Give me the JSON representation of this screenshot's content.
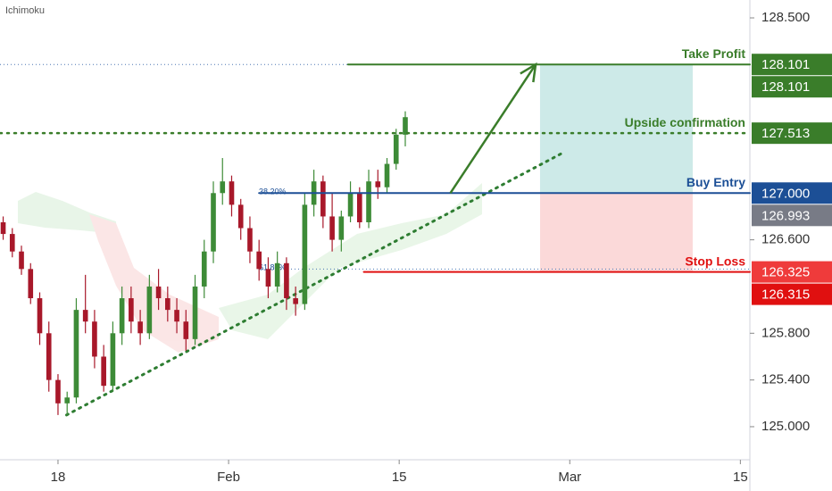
{
  "chart_data": {
    "type": "candlestick",
    "indicator_label": "Ichimoku",
    "up_color": "#3d8b37",
    "down_color": "#a8182a",
    "xlim": [
      -4.76,
      56.78
    ],
    "ylim": [
      124.717,
      128.653
    ],
    "xticks": [
      {
        "value": 0,
        "label": "18"
      },
      {
        "value": 14,
        "label": "Feb"
      },
      {
        "value": 28,
        "label": "15"
      },
      {
        "value": 42,
        "label": "Mar"
      },
      {
        "value": 56,
        "label": "15"
      }
    ],
    "yticks": [
      {
        "value": 125.0,
        "label": "125.000"
      },
      {
        "value": 125.4,
        "label": "125.400"
      },
      {
        "value": 125.8,
        "label": "125.800"
      },
      {
        "value": 126.6,
        "label": "126.600"
      },
      {
        "value": 128.5,
        "label": "128.500"
      }
    ],
    "x": [
      -4.5,
      -3.75,
      -3.0,
      -2.25,
      -1.5,
      -0.75,
      0,
      0.75,
      1.5,
      2.25,
      3.0,
      3.75,
      4.5,
      5.25,
      6.0,
      6.75,
      7.5,
      8.25,
      9.0,
      9.75,
      10.5,
      11.25,
      12.0,
      12.75,
      13.5,
      14.25,
      15.0,
      15.75,
      16.5,
      17.25,
      18.0,
      18.75,
      19.5,
      20.25,
      21.0,
      21.75,
      22.5,
      23.25,
      24.0,
      24.75,
      25.5,
      26.25,
      27.0,
      27.75,
      28.5
    ],
    "open": [
      126.75,
      126.65,
      126.5,
      126.35,
      126.1,
      125.8,
      125.4,
      125.2,
      125.25,
      126.0,
      125.9,
      125.6,
      125.35,
      125.8,
      126.1,
      125.9,
      125.8,
      126.2,
      126.1,
      126.0,
      125.9,
      125.75,
      126.2,
      126.5,
      127.0,
      127.1,
      126.9,
      126.7,
      126.5,
      126.35,
      126.2,
      126.4,
      126.1,
      126.05,
      126.9,
      127.1,
      126.8,
      126.6,
      126.8,
      127.0,
      126.75,
      127.1,
      127.05,
      127.25,
      127.5
    ],
    "high": [
      126.8,
      126.7,
      126.55,
      126.4,
      126.15,
      125.9,
      125.45,
      125.3,
      126.1,
      126.3,
      126.0,
      125.7,
      125.9,
      126.2,
      126.2,
      126.0,
      126.3,
      126.35,
      126.2,
      126.1,
      126.0,
      126.3,
      126.6,
      127.1,
      127.3,
      127.15,
      126.95,
      126.8,
      126.6,
      126.45,
      126.5,
      126.45,
      126.2,
      127.0,
      127.2,
      127.15,
      127.0,
      126.85,
      127.1,
      127.05,
      127.2,
      127.2,
      127.3,
      127.55,
      127.7
    ],
    "low": [
      126.6,
      126.45,
      126.3,
      126.05,
      125.7,
      125.3,
      125.1,
      125.1,
      125.2,
      125.8,
      125.5,
      125.3,
      125.3,
      125.7,
      125.8,
      125.7,
      125.75,
      126.0,
      125.9,
      125.8,
      125.65,
      125.7,
      126.1,
      126.4,
      126.9,
      126.8,
      126.6,
      126.4,
      126.25,
      126.1,
      126.15,
      126.0,
      125.95,
      126.0,
      126.8,
      126.7,
      126.5,
      126.5,
      126.75,
      126.7,
      126.7,
      126.95,
      127.0,
      127.2,
      127.4
    ],
    "close": [
      126.65,
      126.5,
      126.35,
      126.1,
      125.8,
      125.4,
      125.2,
      125.25,
      126.0,
      125.9,
      125.6,
      125.35,
      125.8,
      126.1,
      125.9,
      125.8,
      126.2,
      126.1,
      126.0,
      125.9,
      125.75,
      126.2,
      126.5,
      127.0,
      127.1,
      126.9,
      126.7,
      126.5,
      126.35,
      126.2,
      126.4,
      126.1,
      126.05,
      126.9,
      127.1,
      126.8,
      126.6,
      126.8,
      127.0,
      126.75,
      127.1,
      127.05,
      127.25,
      127.5,
      127.65
    ],
    "levels": [
      {
        "name": "Take Profit",
        "value": 128.101,
        "color": "#3a7d2a",
        "from": 23.8,
        "style": "solid"
      },
      {
        "name": "Upside confirmation",
        "value": 127.513,
        "color": "#3a7d2a",
        "from": -4.76,
        "style": "dotted"
      },
      {
        "name": "Buy Entry",
        "value": 127.0,
        "color": "#1c4f96",
        "from": 16.5,
        "style": "solid"
      },
      {
        "name": "Stop Loss",
        "value": 126.325,
        "color": "#e01010",
        "from": 25.1,
        "style": "solid"
      }
    ],
    "guides": [
      128.101
    ],
    "fib_levels": [
      {
        "label": "38.20%",
        "value": 127.0
      },
      {
        "label": "61.80%",
        "value": 126.35
      }
    ],
    "position": {
      "x": [
        39.56,
        52.09
      ],
      "entry": 127.0,
      "target": 128.101,
      "stop": 126.325
    },
    "trendline": {
      "x": [
        0.7,
        41.6
      ],
      "y": [
        125.1,
        127.354
      ]
    },
    "arrow": {
      "x": [
        32.2,
        39.2
      ],
      "y": [
        127.0,
        128.101
      ]
    },
    "price_labels": [
      {
        "value": 128.101,
        "label": "128.101",
        "color": "#3a7d2a"
      },
      {
        "value": 128.101,
        "label": "128.101",
        "color": "#3a7d2a"
      },
      {
        "value": 127.513,
        "label": "127.513",
        "color": "#3a7d2a"
      },
      {
        "value": 127.0,
        "label": "127.000",
        "color": "#1c4f96"
      },
      {
        "value": 126.993,
        "label": "126.993",
        "color": "#787b86"
      },
      {
        "value": 126.325,
        "label": "126.325",
        "color": "#ef3b3b"
      },
      {
        "value": 126.315,
        "label": "126.315",
        "color": "#e01010"
      }
    ]
  }
}
